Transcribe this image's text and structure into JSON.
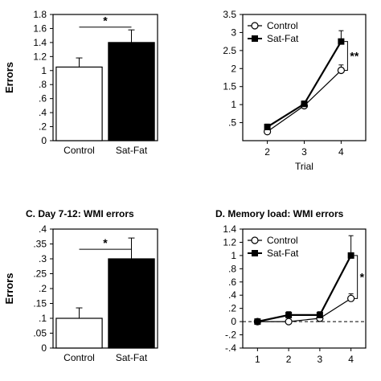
{
  "chart_data": [
    {
      "id": "A",
      "type": "bar",
      "title": "",
      "xlabel": "",
      "ylabel": "Errors",
      "ylim": [
        0,
        1.8
      ],
      "yticks": [
        "0",
        ".2",
        ".4",
        ".6",
        ".8",
        "1",
        "1.2",
        "1.4",
        "1.6",
        "1.8"
      ],
      "categories": [
        "Control",
        "Sat-Fat"
      ],
      "values": [
        1.05,
        1.4
      ],
      "errors": [
        0.13,
        0.18
      ],
      "bar_colors": [
        "#ffffff",
        "#000000"
      ],
      "significance": "*"
    },
    {
      "id": "B",
      "type": "line",
      "title": "",
      "xlabel": "Trial",
      "ylabel": "",
      "ylim": [
        0,
        3.5
      ],
      "yticks": [
        ".5",
        "1",
        "1.5",
        "2",
        "2.5",
        "3",
        "3.5"
      ],
      "x": [
        "2",
        "3",
        "4"
      ],
      "series": [
        {
          "name": "Control",
          "values": [
            0.25,
            0.97,
            1.95
          ],
          "errors": [
            0.1,
            0.08,
            0.15
          ],
          "marker": "open-circle"
        },
        {
          "name": "Sat-Fat",
          "values": [
            0.38,
            1.02,
            2.75
          ],
          "errors": [
            0.08,
            0.08,
            0.3
          ],
          "marker": "filled-square"
        }
      ],
      "legend_position": "top-left",
      "significance": "**"
    },
    {
      "id": "C",
      "type": "bar",
      "title": "C. Day 7-12: WMI errors",
      "xlabel": "",
      "ylabel": "Errors",
      "ylim": [
        0,
        0.4
      ],
      "yticks": [
        "0",
        ".05",
        ".1",
        ".15",
        ".2",
        ".25",
        ".3",
        ".35",
        ".4"
      ],
      "categories": [
        "Control",
        "Sat-Fat"
      ],
      "values": [
        0.1,
        0.3
      ],
      "errors": [
        0.035,
        0.07
      ],
      "bar_colors": [
        "#ffffff",
        "#000000"
      ],
      "significance": "*"
    },
    {
      "id": "D",
      "type": "line",
      "title": "D. Memory load: WMI errors",
      "xlabel": "",
      "ylabel": "",
      "ylim": [
        -0.4,
        1.4
      ],
      "yticks": [
        "-.4",
        "-.2",
        "0",
        ".2",
        ".4",
        ".6",
        ".8",
        "1",
        "1.2",
        "1.4"
      ],
      "x": [
        "1",
        "2",
        "3",
        "4"
      ],
      "series": [
        {
          "name": "Control",
          "values": [
            0.0,
            0.0,
            0.05,
            0.35
          ],
          "errors": [
            0.02,
            0.02,
            0.03,
            0.07
          ],
          "marker": "open-circle"
        },
        {
          "name": "Sat-Fat",
          "values": [
            0.0,
            0.1,
            0.1,
            1.0
          ],
          "errors": [
            0.02,
            0.05,
            0.05,
            0.3
          ],
          "marker": "filled-square"
        }
      ],
      "legend_position": "top-left",
      "reference_line": 0,
      "significance": "*"
    }
  ]
}
